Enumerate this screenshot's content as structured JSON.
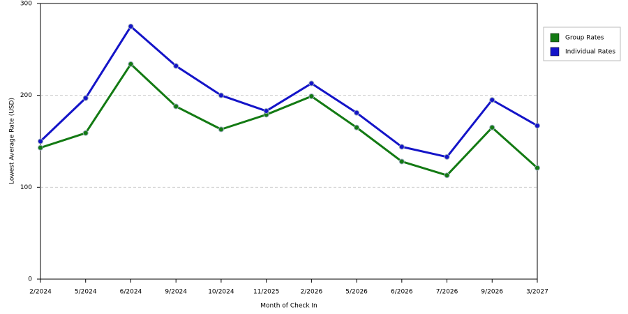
{
  "chart_data": {
    "type": "line",
    "x_label": "Month of Check In",
    "y_label": "Lowest Average Rate (USD)",
    "categories": [
      "2/2024",
      "5/2024",
      "6/2024",
      "9/2024",
      "10/2024",
      "11/2025",
      "2/2026",
      "5/2026",
      "6/2026",
      "7/2026",
      "9/2026",
      "3/2027"
    ],
    "series": [
      {
        "name": "Group Rates",
        "color": "#137a13",
        "values": [
          143,
          159,
          234,
          188,
          163,
          179,
          199,
          165,
          128,
          113,
          165,
          121
        ]
      },
      {
        "name": "Individual Rates",
        "color": "#1414c8",
        "values": [
          150,
          197,
          275,
          232,
          200,
          183,
          213,
          181,
          144,
          133,
          195,
          167
        ]
      }
    ],
    "ylim": [
      0,
      300
    ],
    "yticks": [
      0,
      100,
      200,
      300
    ],
    "grid": true,
    "legend": "right"
  }
}
